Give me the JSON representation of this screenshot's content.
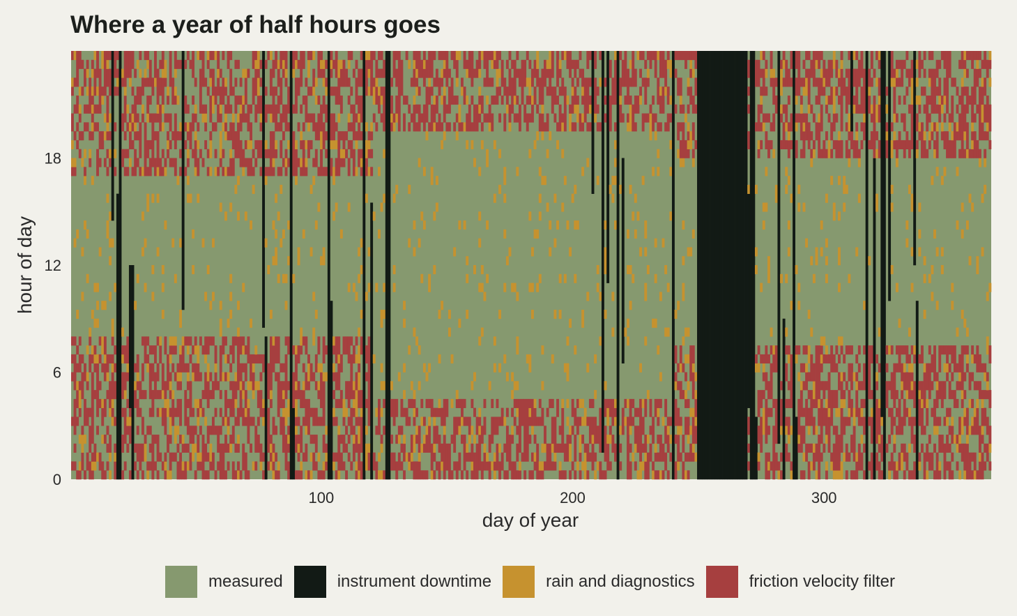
{
  "title": "Where a year of half hours goes",
  "chart_data": {
    "type": "heatmap",
    "title": "Where a year of half hours goes",
    "xlabel": "day of year",
    "ylabel": "hour of day",
    "xlim": [
      1,
      366
    ],
    "ylim": [
      0,
      24
    ],
    "x_ticks": [
      100,
      200,
      300
    ],
    "y_ticks": [
      0,
      6,
      12,
      18
    ],
    "cell_width_days": 1,
    "cell_height_hours": 0.5,
    "categories": [
      "measured",
      "instrument downtime",
      "rain and diagnostics",
      "friction velocity filter"
    ],
    "colors": {
      "measured": "#86996f",
      "instrument downtime": "#121a15",
      "rain and diagnostics": "#c6922f",
      "friction velocity filter": "#a63f3f"
    },
    "downtime_blocks": [
      {
        "start_day": 250,
        "end_day": 269,
        "from_hour": 0,
        "to_hour": 24
      },
      {
        "start_day": 17,
        "end_day": 17,
        "from_hour": 14.5,
        "to_hour": 24
      },
      {
        "start_day": 19,
        "end_day": 19,
        "from_hour": 0,
        "to_hour": 16
      },
      {
        "start_day": 20,
        "end_day": 20,
        "from_hour": 0,
        "to_hour": 24
      },
      {
        "start_day": 24,
        "end_day": 24,
        "from_hour": 4,
        "to_hour": 12
      },
      {
        "start_day": 25,
        "end_day": 25,
        "from_hour": 0,
        "to_hour": 12
      },
      {
        "start_day": 45,
        "end_day": 45,
        "from_hour": 9.5,
        "to_hour": 24
      },
      {
        "start_day": 77,
        "end_day": 77,
        "from_hour": 8.5,
        "to_hour": 24
      },
      {
        "start_day": 78,
        "end_day": 78,
        "from_hour": 0,
        "to_hour": 8
      },
      {
        "start_day": 88,
        "end_day": 88,
        "from_hour": 0,
        "to_hour": 24
      },
      {
        "start_day": 89,
        "end_day": 89,
        "from_hour": 0,
        "to_hour": 4
      },
      {
        "start_day": 103,
        "end_day": 103,
        "from_hour": 0,
        "to_hour": 24
      },
      {
        "start_day": 104,
        "end_day": 104,
        "from_hour": 0,
        "to_hour": 10
      },
      {
        "start_day": 117,
        "end_day": 117,
        "from_hour": 0,
        "to_hour": 24
      },
      {
        "start_day": 120,
        "end_day": 120,
        "from_hour": 0,
        "to_hour": 15.5
      },
      {
        "start_day": 126,
        "end_day": 127,
        "from_hour": 0,
        "to_hour": 24
      },
      {
        "start_day": 208,
        "end_day": 208,
        "from_hour": 16,
        "to_hour": 24
      },
      {
        "start_day": 212,
        "end_day": 212,
        "from_hour": 1.5,
        "to_hour": 24
      },
      {
        "start_day": 214,
        "end_day": 214,
        "from_hour": 11,
        "to_hour": 24
      },
      {
        "start_day": 218,
        "end_day": 218,
        "from_hour": 0,
        "to_hour": 24
      },
      {
        "start_day": 220,
        "end_day": 220,
        "from_hour": 6.5,
        "to_hour": 18
      },
      {
        "start_day": 240,
        "end_day": 240,
        "from_hour": 0,
        "to_hour": 24
      },
      {
        "start_day": 270,
        "end_day": 270,
        "from_hour": 4,
        "to_hour": 16
      },
      {
        "start_day": 271,
        "end_day": 272,
        "from_hour": 0,
        "to_hour": 24
      },
      {
        "start_day": 273,
        "end_day": 273,
        "from_hour": 0,
        "to_hour": 3.5
      },
      {
        "start_day": 282,
        "end_day": 282,
        "from_hour": 2,
        "to_hour": 24
      },
      {
        "start_day": 284,
        "end_day": 284,
        "from_hour": 0,
        "to_hour": 9
      },
      {
        "start_day": 288,
        "end_day": 288,
        "from_hour": 0,
        "to_hour": 24
      },
      {
        "start_day": 289,
        "end_day": 289,
        "from_hour": 0,
        "to_hour": 3.5
      },
      {
        "start_day": 311,
        "end_day": 311,
        "from_hour": 19.5,
        "to_hour": 24
      },
      {
        "start_day": 317,
        "end_day": 317,
        "from_hour": 0,
        "to_hour": 24
      },
      {
        "start_day": 320,
        "end_day": 320,
        "from_hour": 0,
        "to_hour": 18
      },
      {
        "start_day": 323,
        "end_day": 323,
        "from_hour": 3.5,
        "to_hour": 24
      },
      {
        "start_day": 324,
        "end_day": 324,
        "from_hour": 0,
        "to_hour": 24
      },
      {
        "start_day": 326,
        "end_day": 326,
        "from_hour": 10,
        "to_hour": 24
      },
      {
        "start_day": 336,
        "end_day": 336,
        "from_hour": 12,
        "to_hour": 24
      },
      {
        "start_day": 337,
        "end_day": 337,
        "from_hour": 0,
        "to_hour": 10
      }
    ],
    "friction_filter_season_windows": [
      {
        "from_day": 1,
        "to_day": 120,
        "night_before_hour": 8,
        "night_after_hour": 17
      },
      {
        "from_day": 121,
        "to_day": 240,
        "night_before_hour": 4.5,
        "night_after_hour": 19.5
      },
      {
        "from_day": 241,
        "to_day": 366,
        "night_before_hour": 7.5,
        "night_after_hour": 18
      }
    ],
    "legend_position": "bottom",
    "grid": false
  }
}
